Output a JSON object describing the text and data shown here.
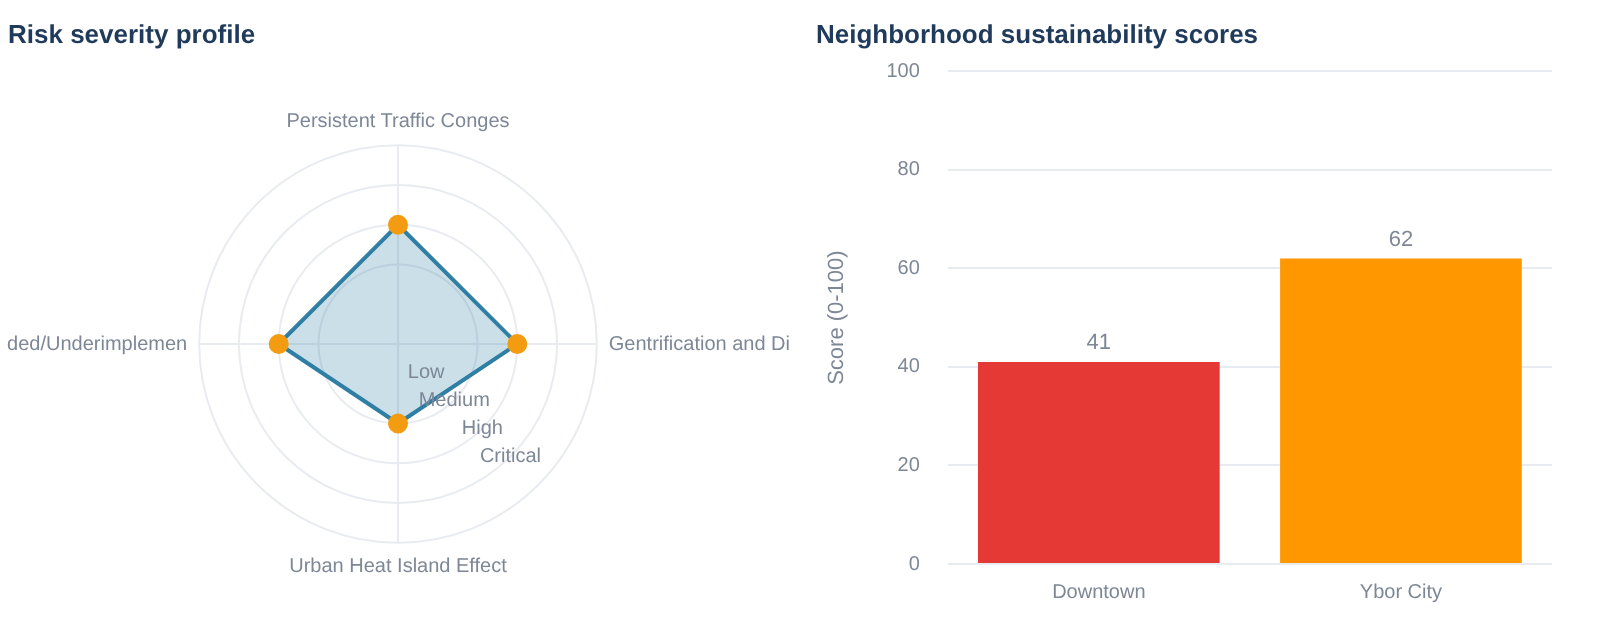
{
  "chart_data": [
    {
      "type": "radar",
      "title": "Risk severity profile",
      "categories": [
        "Persistent Traffic Conges",
        "Gentrification and Di",
        "Urban Heat Island Effect",
        "ded/Underimplemen"
      ],
      "series": [
        {
          "color": "#2f7fa5",
          "colors": [
            "#f39c12",
            "#f39c12",
            "#f39c12",
            "#f39c12"
          ],
          "values": [
            3,
            3,
            2,
            3
          ]
        }
      ],
      "ylim": [
        0,
        5
      ],
      "yticks": [
        {
          "value": 1,
          "label": "Low"
        },
        {
          "value": 2,
          "label": "Medium"
        },
        {
          "value": 3,
          "label": "High"
        },
        {
          "value": 4,
          "label": "Critical"
        }
      ],
      "marker": "circle",
      "grid": true
    },
    {
      "type": "bar",
      "title": "Neighborhood sustainability scores",
      "ylabel": "Score (0-100)",
      "categories": [
        "Downtown",
        "Ybor City"
      ],
      "values": [
        41,
        62
      ],
      "colors": [
        "#e53935",
        "#ff9800"
      ],
      "ylim": [
        0,
        100
      ],
      "yticks": [
        0,
        20,
        40,
        60,
        80,
        100
      ],
      "data_labels": true,
      "grid": "y"
    }
  ]
}
